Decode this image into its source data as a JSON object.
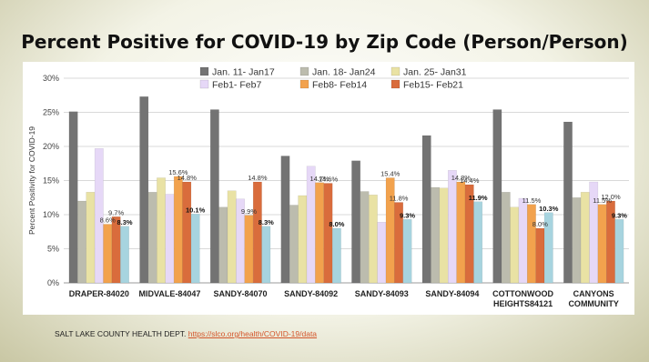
{
  "title": "Percent Positive for COVID-19 by Zip Code (Person/Person)",
  "source": {
    "text": "SALT LAKE COUNTY HEALTH DEPT.",
    "link": "https://slco.org/health/COVID-19/data"
  },
  "chart_data": {
    "type": "bar",
    "title": "Percent Positive for COVID-19 by Zip Code (Person/Person)",
    "ylabel": "Percent Positivity for COVID-19",
    "xlabel": "",
    "ylim": [
      0,
      30
    ],
    "yticks": [
      "0%",
      "5%",
      "10%",
      "15%",
      "20%",
      "25%",
      "30%"
    ],
    "grid": true,
    "legend_position": "top",
    "categories": [
      "DRAPER-84020",
      "MIDVALE-84047",
      "SANDY-84070",
      "SANDY-84092",
      "SANDY-84093",
      "SANDY-84094",
      "COTTONWOOD HEIGHTS84121",
      "CANYONS COMMUNITY"
    ],
    "series": [
      {
        "name": "Jan. 11- Jan17",
        "color": "#737373",
        "values": [
          25.1,
          27.3,
          25.4,
          18.6,
          17.9,
          21.6,
          25.4,
          23.6
        ]
      },
      {
        "name": "Jan. 18- Jan24",
        "color": "#bcbcae",
        "values": [
          12.0,
          13.3,
          11.1,
          11.4,
          13.4,
          14.0,
          13.3,
          12.5
        ]
      },
      {
        "name": "Jan. 25- Jan31",
        "color": "#e9e2a4",
        "values": [
          13.3,
          15.4,
          13.5,
          12.8,
          12.9,
          13.9,
          11.1,
          13.3
        ]
      },
      {
        "name": "Feb1- Feb7",
        "color": "#e6d8f7",
        "values": [
          19.7,
          13.0,
          12.3,
          17.1,
          8.9,
          16.5,
          12.4,
          14.8
        ]
      },
      {
        "name": "Feb8- Feb14",
        "color": "#f2a24d",
        "values": [
          8.6,
          15.6,
          9.9,
          14.7,
          15.4,
          14.8,
          11.5,
          11.5
        ]
      },
      {
        "name": "Feb15- Feb21",
        "color": "#d96c3c",
        "values": [
          9.7,
          14.8,
          14.8,
          14.6,
          11.8,
          14.4,
          8.0,
          12.0
        ]
      },
      {
        "name": "",
        "color": "#a7d4df",
        "values": [
          8.3,
          10.1,
          8.3,
          8.0,
          9.3,
          11.9,
          10.3,
          9.3
        ]
      }
    ],
    "data_labels": [
      {
        "category": 0,
        "series": 4,
        "text": "8.6%",
        "bold": false
      },
      {
        "category": 0,
        "series": 5,
        "text": "9.7%",
        "bold": false
      },
      {
        "category": 0,
        "series": 6,
        "text": "8.3%",
        "bold": true
      },
      {
        "category": 1,
        "series": 4,
        "text": "15.6%",
        "bold": false
      },
      {
        "category": 1,
        "series": 5,
        "text": "14.8%",
        "bold": false
      },
      {
        "category": 1,
        "series": 6,
        "text": "10.1%",
        "bold": true
      },
      {
        "category": 2,
        "series": 4,
        "text": "9.9%",
        "bold": false
      },
      {
        "category": 2,
        "series": 5,
        "text": "14.8%",
        "bold": false
      },
      {
        "category": 2,
        "series": 6,
        "text": "8.3%",
        "bold": true
      },
      {
        "category": 3,
        "series": 4,
        "text": "14.7%",
        "bold": false
      },
      {
        "category": 3,
        "series": 5,
        "text": "14.6%",
        "bold": false
      },
      {
        "category": 3,
        "series": 6,
        "text": "8.0%",
        "bold": true
      },
      {
        "category": 4,
        "series": 4,
        "text": "15.4%",
        "bold": false
      },
      {
        "category": 4,
        "series": 5,
        "text": "11.8%",
        "bold": false
      },
      {
        "category": 4,
        "series": 6,
        "text": "9.3%",
        "bold": true
      },
      {
        "category": 5,
        "series": 4,
        "text": "14.8%",
        "bold": false
      },
      {
        "category": 5,
        "series": 5,
        "text": "14.4%",
        "bold": false
      },
      {
        "category": 5,
        "series": 6,
        "text": "11.9%",
        "bold": true
      },
      {
        "category": 6,
        "series": 4,
        "text": "11.5%",
        "bold": false
      },
      {
        "category": 6,
        "series": 5,
        "text": "8.0%",
        "bold": false
      },
      {
        "category": 6,
        "series": 6,
        "text": "10.3%",
        "bold": true
      },
      {
        "category": 7,
        "series": 4,
        "text": "11.5%",
        "bold": false
      },
      {
        "category": 7,
        "series": 5,
        "text": "12.0%",
        "bold": false
      },
      {
        "category": 7,
        "series": 6,
        "text": "9.3%",
        "bold": true
      }
    ]
  }
}
